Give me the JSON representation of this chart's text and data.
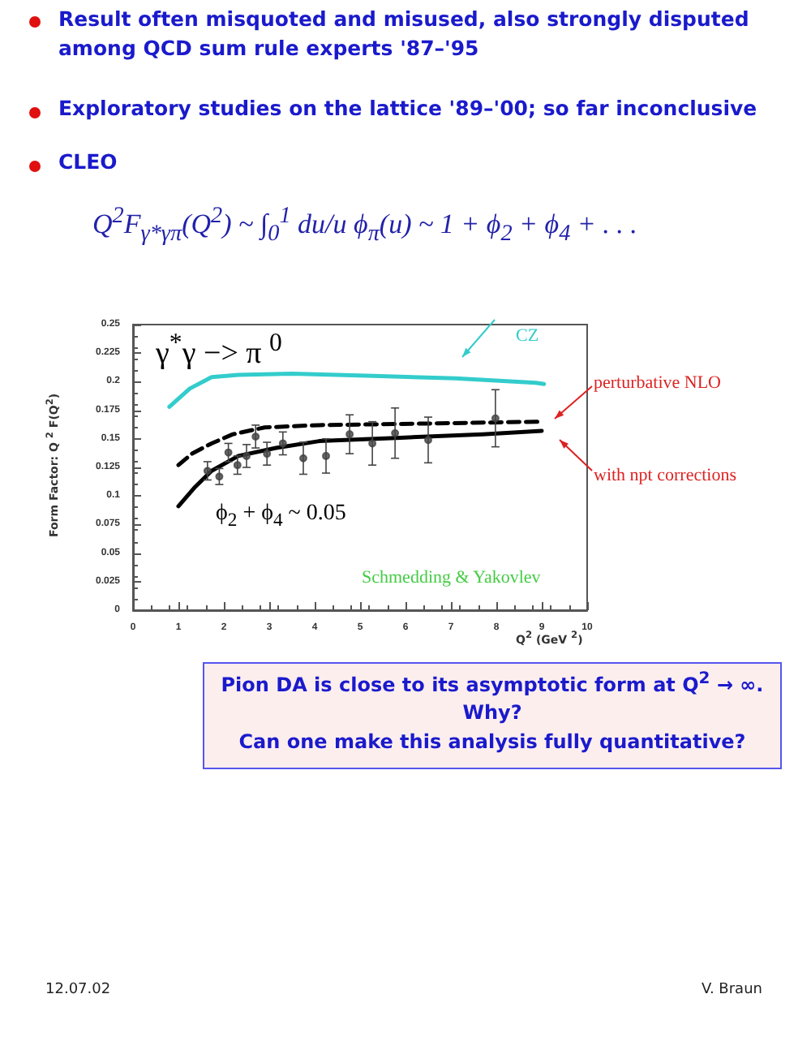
{
  "chart_data": {
    "type": "line",
    "xlabel": "Q$^{2}$ (GeV $^{2}$)",
    "ylabel": "Form Factor: Q $^{2}$ F(Q$^{2}$)",
    "xlim": [
      0,
      10
    ],
    "xticks": [
      0,
      1,
      2,
      3,
      4,
      5,
      6,
      7,
      8,
      9,
      10
    ],
    "ylim": [
      0,
      0.25
    ],
    "yticks": [
      0,
      0.025,
      0.05,
      0.075,
      0.1,
      0.125,
      0.15,
      0.175,
      0.2,
      0.225,
      0.25
    ],
    "grid": false,
    "series": [
      {
        "color": "#33cccc",
        "line_style": "solid",
        "marker": "none",
        "x": [
          0.8,
          1.25,
          1.73,
          2.32,
          3.5,
          5.3,
          7.1,
          8.87,
          9.05
        ],
        "values": [
          0.178,
          0.194,
          0.204,
          0.206,
          0.207,
          0.205,
          0.203,
          0.199,
          0.198
        ]
      },
      {
        "color": "#000000",
        "line_style": "dashed",
        "marker": "none",
        "x": [
          1.0,
          1.3,
          1.73,
          2.2,
          2.9,
          4.1,
          5.9,
          8.87,
          9.0
        ],
        "values": [
          0.127,
          0.137,
          0.146,
          0.154,
          0.16,
          0.162,
          0.163,
          0.165,
          0.165
        ]
      },
      {
        "color": "#000000",
        "line_style": "solid",
        "marker": "none",
        "x": [
          1.0,
          1.37,
          1.73,
          2.32,
          3.15,
          4.1,
          5.9,
          7.7,
          9.0
        ],
        "values": [
          0.091,
          0.108,
          0.122,
          0.135,
          0.142,
          0.148,
          0.151,
          0.154,
          0.157
        ]
      },
      {
        "type": "scatter",
        "color": "#444444",
        "marker": "circle",
        "x": [
          1.64,
          1.9,
          2.1,
          2.3,
          2.5,
          2.7,
          2.95,
          3.3,
          3.75,
          4.25,
          4.77,
          5.27,
          5.77,
          6.5,
          7.98
        ],
        "values": [
          0.122,
          0.117,
          0.138,
          0.127,
          0.135,
          0.152,
          0.137,
          0.146,
          0.133,
          0.135,
          0.154,
          0.146,
          0.155,
          0.149,
          0.168
        ],
        "errors": [
          0.008,
          0.007,
          0.008,
          0.008,
          0.01,
          0.01,
          0.01,
          0.01,
          0.014,
          0.015,
          0.017,
          0.019,
          0.022,
          0.02,
          0.025
        ]
      }
    ],
    "annotations": [
      "Result often misquoted and misused, also strongly disputed among QCD sum rule experts '87–'95",
      "Exploratory studies on the lattice '89–'00; so far inconclusive",
      "CLEO",
      "Q$^{2}$F$_{γ*γπ}$(Q$^{2}$) ~ ∫$_{0}$$^{1}$ du/u ϕ$_{π}$(u) ~ 1 + ϕ$_{2}$ + ϕ$_{4}$ + . . .",
      "γ$^{*}$γ −> π $^{0}$",
      "CZ",
      "perturbative NLO",
      "with npt corrections",
      "ϕ$_{2}$ + ϕ$_{4}$ ~ 0.05",
      "Schmedding & Yakovlev",
      "Pion DA is close to its asymptotic form at Q$^{2}$ → ∞.",
      "Why?",
      "Can one make this analysis fully quantitative?",
      "12.07.02",
      "V. Braun"
    ]
  }
}
